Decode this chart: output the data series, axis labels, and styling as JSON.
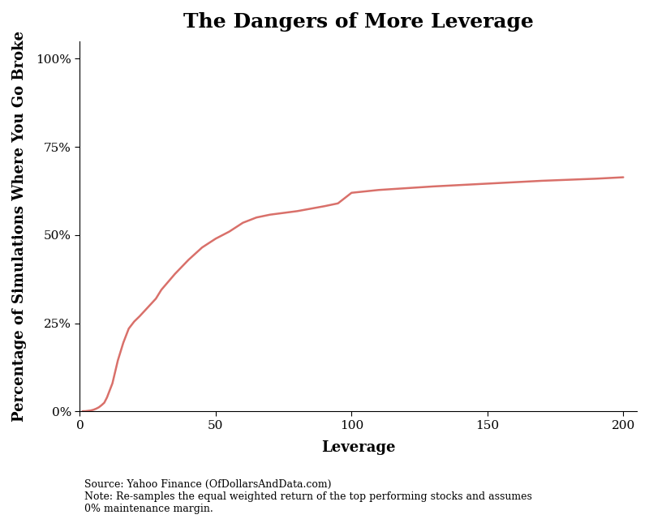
{
  "title": "The Dangers of More Leverage",
  "xlabel": "Leverage",
  "ylabel": "Percentage of Simulations Where You Go Broke",
  "line_color": "#d9706a",
  "background_color": "#ffffff",
  "x_data": [
    1,
    2,
    3,
    4,
    5,
    6,
    7,
    8,
    9,
    10,
    12,
    14,
    16,
    18,
    20,
    22,
    25,
    28,
    30,
    35,
    40,
    45,
    50,
    55,
    60,
    65,
    70,
    75,
    80,
    85,
    90,
    95,
    100,
    110,
    120,
    130,
    140,
    150,
    160,
    170,
    180,
    190,
    200
  ],
  "y_data": [
    0.001,
    0.001,
    0.002,
    0.003,
    0.005,
    0.008,
    0.012,
    0.018,
    0.025,
    0.04,
    0.08,
    0.145,
    0.195,
    0.235,
    0.255,
    0.27,
    0.295,
    0.32,
    0.345,
    0.39,
    0.43,
    0.465,
    0.49,
    0.51,
    0.535,
    0.55,
    0.558,
    0.563,
    0.568,
    0.575,
    0.582,
    0.59,
    0.62,
    0.628,
    0.633,
    0.638,
    0.642,
    0.646,
    0.65,
    0.654,
    0.657,
    0.66,
    0.664
  ],
  "xlim": [
    0,
    205
  ],
  "ylim": [
    0,
    1.05
  ],
  "yticks": [
    0,
    0.25,
    0.5,
    0.75,
    1.0
  ],
  "ytick_labels": [
    "0%",
    "25%",
    "50%",
    "75%",
    "100%"
  ],
  "xticks": [
    0,
    50,
    100,
    150,
    200
  ],
  "source_text": "Source: Yahoo Finance (OfDollarsAndData.com)\nNote: Re-samples the equal weighted return of the top performing stocks and assumes\n0% maintenance margin.",
  "title_fontsize": 18,
  "axis_label_fontsize": 13,
  "tick_fontsize": 11,
  "source_fontsize": 9,
  "line_width": 1.8
}
